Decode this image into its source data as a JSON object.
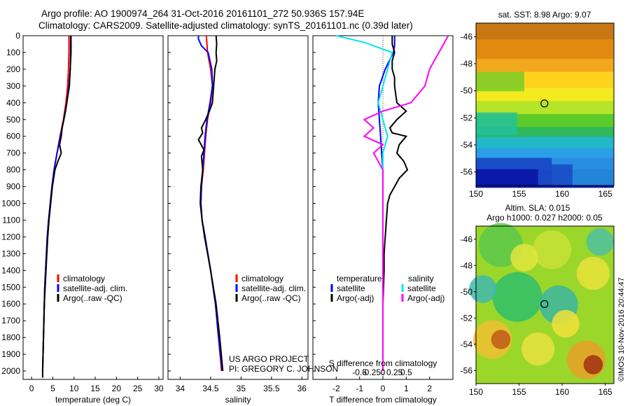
{
  "header": {
    "line1": "Argo profile: AO 1900974_264 31-Oct-2016 20161101_272 50.936S 157.94E",
    "line2": "Climatology: CARS2009. Satellite-adjusted climatology: synTS_20161101.nc (0.39d later)"
  },
  "colors": {
    "climatology": "#ff0000",
    "satellite": "#0000ff",
    "argo": "#000000",
    "salinity_satellite": "#00e5ee",
    "salinity_argo": "#ff00ff"
  },
  "credit": {
    "line1": "US ARGO PROJECT",
    "line2": "PI: GREGORY C. JOHNSON",
    "imos": "©IMOS 10-Nov-2016 20:44:47"
  },
  "chart_data": [
    {
      "type": "line",
      "xlabel": "temperature (deg C)",
      "xlim": [
        -2,
        31
      ],
      "xticks": [
        0,
        5,
        10,
        15,
        20,
        25,
        30
      ],
      "ylim": [
        0,
        2050
      ],
      "yticks": [
        0,
        100,
        200,
        300,
        400,
        500,
        600,
        700,
        800,
        900,
        1000,
        1100,
        1200,
        1300,
        1400,
        1500,
        1600,
        1700,
        1800,
        1900,
        2000
      ],
      "legend": [
        "climatology",
        "satellite-adj. clim.",
        "Argo(..raw -QC)"
      ],
      "legend_location": "lower-center",
      "series": [
        {
          "name": "climatology",
          "color": "#ff0000",
          "y": [
            0,
            100,
            200,
            300,
            400,
            500,
            600,
            700,
            800,
            900,
            1000,
            1100,
            1200,
            1300,
            1400,
            1500,
            1600,
            1700,
            1800,
            1900,
            1950,
            2000
          ],
          "x": [
            8.8,
            8.8,
            8.7,
            8.5,
            8.1,
            7.5,
            6.7,
            6.0,
            5.3,
            4.8,
            4.4,
            4.0,
            3.7,
            3.5,
            3.3,
            3.1,
            3.0,
            2.9,
            2.8,
            2.7,
            2.65,
            2.6
          ]
        },
        {
          "name": "satellite-adj. clim.",
          "color": "#0000ff",
          "y": [
            0,
            100,
            200,
            300,
            400,
            500,
            600,
            700,
            800,
            900,
            1000,
            1100,
            1200,
            1300,
            1400,
            1500,
            1600,
            1700,
            1800,
            1900,
            1950,
            2000
          ],
          "x": [
            9.3,
            9.3,
            9.1,
            8.8,
            8.3,
            7.6,
            6.8,
            6.0,
            5.3,
            4.8,
            4.4,
            4.0,
            3.7,
            3.5,
            3.3,
            3.1,
            3.0,
            2.9,
            2.8,
            2.7,
            2.65,
            2.6
          ]
        },
        {
          "name": "Argo(..raw -QC)",
          "color": "#000000",
          "y": [
            0,
            100,
            200,
            300,
            400,
            450,
            500,
            550,
            600,
            650,
            700,
            750,
            800,
            900,
            1000,
            1100,
            1200,
            1300,
            1400,
            1500,
            1600,
            1700,
            1800,
            1900,
            2000,
            2040
          ],
          "x": [
            9.2,
            9.2,
            9.1,
            8.9,
            8.3,
            8.0,
            7.6,
            7.2,
            7.0,
            6.6,
            7.0,
            6.2,
            5.5,
            4.9,
            4.5,
            4.1,
            3.8,
            3.6,
            3.4,
            3.2,
            3.0,
            2.9,
            2.8,
            2.7,
            2.6,
            2.6
          ]
        }
      ]
    },
    {
      "type": "line",
      "xlabel": "salinity",
      "xlim": [
        33.8,
        36.1
      ],
      "xticks": [
        34,
        34.5,
        35,
        35.5,
        36
      ],
      "ylim": [
        0,
        2050
      ],
      "legend": [
        "climatology",
        "satellite-adj. clim.",
        "Argo(..raw -QC)"
      ],
      "legend_location": "lower-right",
      "series": [
        {
          "name": "climatology",
          "color": "#ff0000",
          "y": [
            0,
            100,
            200,
            300,
            400,
            500,
            600,
            700,
            800,
            900,
            1000,
            1100,
            1200,
            1400,
            1600,
            1800,
            2000
          ],
          "x": [
            34.43,
            34.45,
            34.5,
            34.53,
            34.5,
            34.45,
            34.42,
            34.4,
            34.38,
            34.35,
            34.34,
            34.36,
            34.41,
            34.5,
            34.58,
            34.63,
            34.68
          ]
        },
        {
          "name": "satellite-adj. clim.",
          "color": "#0000ff",
          "y": [
            0,
            20,
            60,
            100,
            200,
            300,
            400,
            500,
            600,
            700,
            800,
            900,
            1000,
            1100,
            1200,
            1400,
            1600,
            1800,
            2000
          ],
          "x": [
            34.3,
            34.3,
            34.35,
            34.46,
            34.52,
            34.53,
            34.49,
            34.44,
            34.41,
            34.39,
            34.37,
            34.35,
            34.34,
            34.36,
            34.41,
            34.5,
            34.58,
            34.63,
            34.69
          ]
        },
        {
          "name": "Argo(..raw -QC)",
          "color": "#000000",
          "y": [
            0,
            50,
            100,
            150,
            200,
            300,
            400,
            450,
            500,
            550,
            580,
            620,
            680,
            720,
            800,
            900,
            1000,
            1100,
            1200,
            1400,
            1600,
            1800,
            2000
          ],
          "x": [
            34.59,
            34.6,
            34.59,
            34.6,
            34.57,
            34.55,
            34.53,
            34.48,
            34.42,
            34.35,
            34.37,
            34.3,
            34.39,
            34.35,
            34.37,
            34.34,
            34.33,
            34.36,
            34.4,
            34.5,
            34.59,
            34.65,
            34.7
          ]
        }
      ]
    },
    {
      "type": "line",
      "xlabel": "T difference from climatology",
      "xlabel_top": "S difference from climatology",
      "xlim": [
        -3,
        3
      ],
      "xticks": [
        -2,
        -1,
        0,
        1,
        2
      ],
      "xticks_top": [
        -0.5,
        -0.25,
        0,
        0.25,
        0.5
      ],
      "ylim": [
        0,
        2050
      ],
      "legend_left_title": "temperature",
      "legend_right_title": "salinity",
      "legend_left": [
        "satellite",
        "Argo(-adj)"
      ],
      "legend_right": [
        "satellite",
        "Argo(-adj)"
      ],
      "series": [
        {
          "name": "satellite",
          "group": "temperature",
          "color": "#0000ff",
          "y": [
            0,
            60,
            100,
            200,
            300,
            400,
            500,
            600,
            700,
            800,
            900,
            1000,
            1200,
            1400,
            1600,
            1800,
            2000
          ],
          "x": [
            0.5,
            0.5,
            0.45,
            0.1,
            -0.15,
            -0.2,
            -0.15,
            -0.1,
            -0.05,
            0,
            0,
            0,
            0,
            0,
            0,
            0,
            0
          ]
        },
        {
          "name": "Argo(-adj)",
          "group": "temperature",
          "color": "#000000",
          "y": [
            0,
            50,
            100,
            150,
            200,
            250,
            300,
            350,
            400,
            450,
            500,
            550,
            580,
            600,
            650,
            700,
            750,
            800,
            850,
            900,
            950,
            1000,
            1100,
            1200,
            1300,
            1400,
            1600,
            1800,
            2000
          ],
          "x": [
            0.4,
            0.4,
            0.5,
            0.4,
            0.4,
            0.5,
            0.5,
            0.55,
            0.6,
            1.0,
            0.6,
            0.3,
            0.4,
            1.0,
            0.7,
            0.6,
            0.9,
            1.05,
            0.7,
            0.5,
            0.3,
            0.2,
            0.15,
            0.1,
            0.05,
            0.05,
            0,
            0,
            0
          ]
        },
        {
          "name": "satellite",
          "group": "salinity",
          "color": "#00e5ee",
          "y": [
            0,
            40,
            80,
            100,
            200,
            300,
            400,
            500,
            600,
            700,
            800,
            900,
            1000,
            1200,
            1400,
            1600,
            1800,
            2000
          ],
          "x": [
            -0.5,
            -0.2,
            0,
            0.1,
            0.05,
            0.0,
            -0.05,
            0.0,
            0.05,
            0.0,
            0.0,
            0.0,
            0.0,
            0.0,
            0.0,
            0.0,
            0.0,
            0.0
          ]
        },
        {
          "name": "Argo(-adj)",
          "group": "salinity",
          "color": "#ff00ff",
          "y": [
            0,
            50,
            100,
            150,
            200,
            300,
            400,
            450,
            500,
            550,
            600,
            650,
            700,
            800,
            900,
            1000,
            1200,
            1400,
            1600,
            1800,
            2000
          ],
          "x": [
            0.7,
            0.65,
            0.6,
            0.55,
            0.5,
            0.45,
            0.3,
            0.0,
            -0.2,
            -0.1,
            -0.2,
            0.0,
            -0.1,
            0.0,
            0.0,
            0.0,
            0.0,
            0.0,
            0.0,
            0.0,
            0.0
          ]
        }
      ]
    },
    {
      "type": "heatmap",
      "title": "sat. SST: 8.98 Argo: 9.07",
      "xlim": [
        150,
        166
      ],
      "xticks": [
        150,
        155,
        160,
        165
      ],
      "ylim": [
        -57,
        -45
      ],
      "yticks": [
        -46,
        -48,
        -50,
        -52,
        -54,
        -56
      ],
      "marker": {
        "lon": 157.94,
        "lat": -50.936
      }
    },
    {
      "type": "heatmap",
      "title": "Altim. SLA: 0.015",
      "subtitle": "Argo h1000: 0.027 h2000: 0.05",
      "xlim": [
        150,
        166
      ],
      "xticks": [
        150,
        155,
        160,
        165
      ],
      "ylim": [
        -57,
        -45
      ],
      "yticks": [
        -46,
        -48,
        -50,
        -52,
        -54,
        -56
      ],
      "marker": {
        "lon": 157.94,
        "lat": -50.936
      }
    }
  ]
}
